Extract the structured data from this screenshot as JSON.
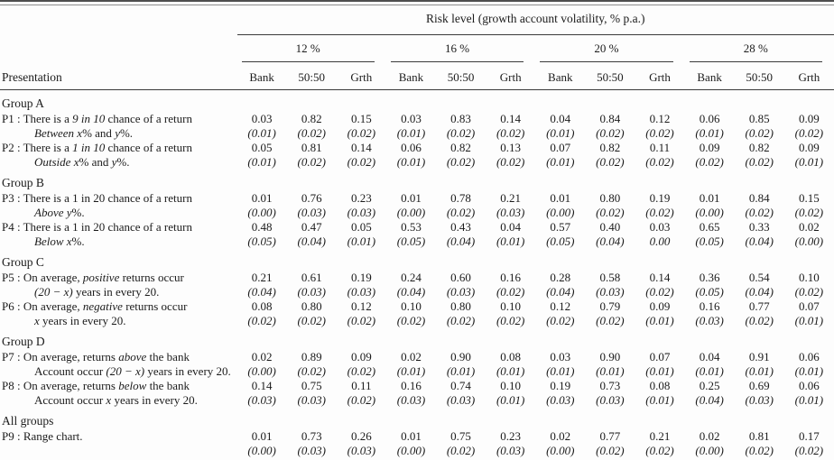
{
  "colors": {
    "text": "#1b1b1b",
    "rule": "#3a3a3a",
    "background": "#fdfdfd"
  },
  "table": {
    "title": "Risk level (growth account volatility, % p.a.)",
    "presentation_label": "Presentation",
    "risk_levels": [
      "12 %",
      "16 %",
      "20 %",
      "28 %"
    ],
    "sub_columns": [
      "Bank",
      "50:50",
      "Grth"
    ],
    "groups": [
      {
        "label": "Group A",
        "rows": [
          {
            "id": "P1",
            "line1": [
              {
                "t": "There is a "
              },
              {
                "t": "9 in 10",
                "i": true
              },
              {
                "t": " chance of a return"
              }
            ],
            "line2": [
              {
                "t": "Between",
                "i": true
              },
              {
                "t": " "
              },
              {
                "t": "x",
                "i": true
              },
              {
                "t": "% and "
              },
              {
                "t": "y",
                "i": true
              },
              {
                "t": "%."
              }
            ],
            "values": [
              "0.03",
              "0.82",
              "0.15",
              "0.03",
              "0.83",
              "0.14",
              "0.04",
              "0.84",
              "0.12",
              "0.06",
              "0.85",
              "0.09"
            ],
            "se": [
              "(0.01)",
              "(0.02)",
              "(0.02)",
              "(0.01)",
              "(0.02)",
              "(0.02)",
              "(0.01)",
              "(0.02)",
              "(0.02)",
              "(0.01)",
              "(0.02)",
              "(0.02)"
            ]
          },
          {
            "id": "P2",
            "line1": [
              {
                "t": "There is a "
              },
              {
                "t": "1 in 10",
                "i": true
              },
              {
                "t": " chance of a return"
              }
            ],
            "line2": [
              {
                "t": "Outside",
                "i": true
              },
              {
                "t": " "
              },
              {
                "t": "x",
                "i": true
              },
              {
                "t": "% and "
              },
              {
                "t": "y",
                "i": true
              },
              {
                "t": "%."
              }
            ],
            "values": [
              "0.05",
              "0.81",
              "0.14",
              "0.06",
              "0.82",
              "0.13",
              "0.07",
              "0.82",
              "0.11",
              "0.09",
              "0.82",
              "0.09"
            ],
            "se": [
              "(0.01)",
              "(0.02)",
              "(0.02)",
              "(0.01)",
              "(0.02)",
              "(0.02)",
              "(0.01)",
              "(0.02)",
              "(0.02)",
              "(0.02)",
              "(0.02)",
              "(0.01)"
            ]
          }
        ]
      },
      {
        "label": "Group B",
        "rows": [
          {
            "id": "P3",
            "line1": [
              {
                "t": "There is a 1 in 20 chance of a return"
              }
            ],
            "line2": [
              {
                "t": "Above",
                "i": true
              },
              {
                "t": " "
              },
              {
                "t": "y",
                "i": true
              },
              {
                "t": "%."
              }
            ],
            "values": [
              "0.01",
              "0.76",
              "0.23",
              "0.01",
              "0.78",
              "0.21",
              "0.01",
              "0.80",
              "0.19",
              "0.01",
              "0.84",
              "0.15"
            ],
            "se": [
              "(0.00)",
              "(0.03)",
              "(0.03)",
              "(0.00)",
              "(0.02)",
              "(0.03)",
              "(0.00)",
              "(0.02)",
              "(0.02)",
              "(0.00)",
              "(0.02)",
              "(0.02)"
            ]
          },
          {
            "id": "P4",
            "line1": [
              {
                "t": "There is a 1 in 20 chance of a return"
              }
            ],
            "line2": [
              {
                "t": "Below",
                "i": true
              },
              {
                "t": " "
              },
              {
                "t": "x",
                "i": true
              },
              {
                "t": "%."
              }
            ],
            "values": [
              "0.48",
              "0.47",
              "0.05",
              "0.53",
              "0.43",
              "0.04",
              "0.57",
              "0.40",
              "0.03",
              "0.65",
              "0.33",
              "0.02"
            ],
            "se": [
              "(0.05)",
              "(0.04)",
              "(0.01)",
              "(0.05)",
              "(0.04)",
              "(0.01)",
              "(0.05)",
              "(0.04)",
              "0.00",
              "(0.05)",
              "(0.04)",
              "(0.00)"
            ]
          }
        ]
      },
      {
        "label": "Group C",
        "rows": [
          {
            "id": "P5",
            "line1": [
              {
                "t": "On average, "
              },
              {
                "t": "positive",
                "i": true
              },
              {
                "t": " returns occur"
              }
            ],
            "line2": [
              {
                "t": "(20 − x)",
                "i": true
              },
              {
                "t": " years in every 20."
              }
            ],
            "values": [
              "0.21",
              "0.61",
              "0.19",
              "0.24",
              "0.60",
              "0.16",
              "0.28",
              "0.58",
              "0.14",
              "0.36",
              "0.54",
              "0.10"
            ],
            "se": [
              "(0.04)",
              "(0.03)",
              "(0.03)",
              "(0.04)",
              "(0.03)",
              "(0.02)",
              "(0.04)",
              "(0.03)",
              "(0.02)",
              "(0.05)",
              "(0.04)",
              "(0.02)"
            ]
          },
          {
            "id": "P6",
            "line1": [
              {
                "t": "On average, "
              },
              {
                "t": "negative",
                "i": true
              },
              {
                "t": " returns occur"
              }
            ],
            "line2": [
              {
                "t": "x",
                "i": true
              },
              {
                "t": " years in every 20."
              }
            ],
            "values": [
              "0.08",
              "0.80",
              "0.12",
              "0.10",
              "0.80",
              "0.10",
              "0.12",
              "0.79",
              "0.09",
              "0.16",
              "0.77",
              "0.07"
            ],
            "se": [
              "(0.02)",
              "(0.02)",
              "(0.02)",
              "(0.02)",
              "(0.02)",
              "(0.02)",
              "(0.02)",
              "(0.02)",
              "(0.01)",
              "(0.03)",
              "(0.02)",
              "(0.01)"
            ]
          }
        ]
      },
      {
        "label": "Group D",
        "rows": [
          {
            "id": "P7",
            "line1": [
              {
                "t": "On average, returns "
              },
              {
                "t": "above",
                "i": true
              },
              {
                "t": " the bank"
              }
            ],
            "line2": [
              {
                "t": "Account occur "
              },
              {
                "t": "(20 − x)",
                "i": true
              },
              {
                "t": " years in every 20."
              }
            ],
            "values": [
              "0.02",
              "0.89",
              "0.09",
              "0.02",
              "0.90",
              "0.08",
              "0.03",
              "0.90",
              "0.07",
              "0.04",
              "0.91",
              "0.06"
            ],
            "se": [
              "(0.00)",
              "(0.02)",
              "(0.02)",
              "(0.01)",
              "(0.01)",
              "(0.01)",
              "(0.01)",
              "(0.01)",
              "(0.01)",
              "(0.01)",
              "(0.01)",
              "(0.01)"
            ]
          },
          {
            "id": "P8",
            "line1": [
              {
                "t": "On average, returns "
              },
              {
                "t": "below",
                "i": true
              },
              {
                "t": " the bank"
              }
            ],
            "line2": [
              {
                "t": "Account occur "
              },
              {
                "t": "x",
                "i": true
              },
              {
                "t": " years in every 20."
              }
            ],
            "values": [
              "0.14",
              "0.75",
              "0.11",
              "0.16",
              "0.74",
              "0.10",
              "0.19",
              "0.73",
              "0.08",
              "0.25",
              "0.69",
              "0.06"
            ],
            "se": [
              "(0.03)",
              "(0.03)",
              "(0.02)",
              "(0.03)",
              "(0.03)",
              "(0.01)",
              "(0.03)",
              "(0.03)",
              "(0.01)",
              "(0.04)",
              "(0.03)",
              "(0.01)"
            ]
          }
        ]
      },
      {
        "label": "All groups",
        "rows": [
          {
            "id": "P9",
            "line1": [
              {
                "t": "Range chart."
              }
            ],
            "line2": [],
            "values": [
              "0.01",
              "0.73",
              "0.26",
              "0.01",
              "0.75",
              "0.23",
              "0.02",
              "0.77",
              "0.21",
              "0.02",
              "0.81",
              "0.17"
            ],
            "se": [
              "(0.00)",
              "(0.03)",
              "(0.03)",
              "(0.00)",
              "(0.02)",
              "(0.03)",
              "(0.00)",
              "(0.02)",
              "(0.02)",
              "(0.00)",
              "(0.02)",
              "(0.02)"
            ]
          }
        ]
      }
    ]
  }
}
